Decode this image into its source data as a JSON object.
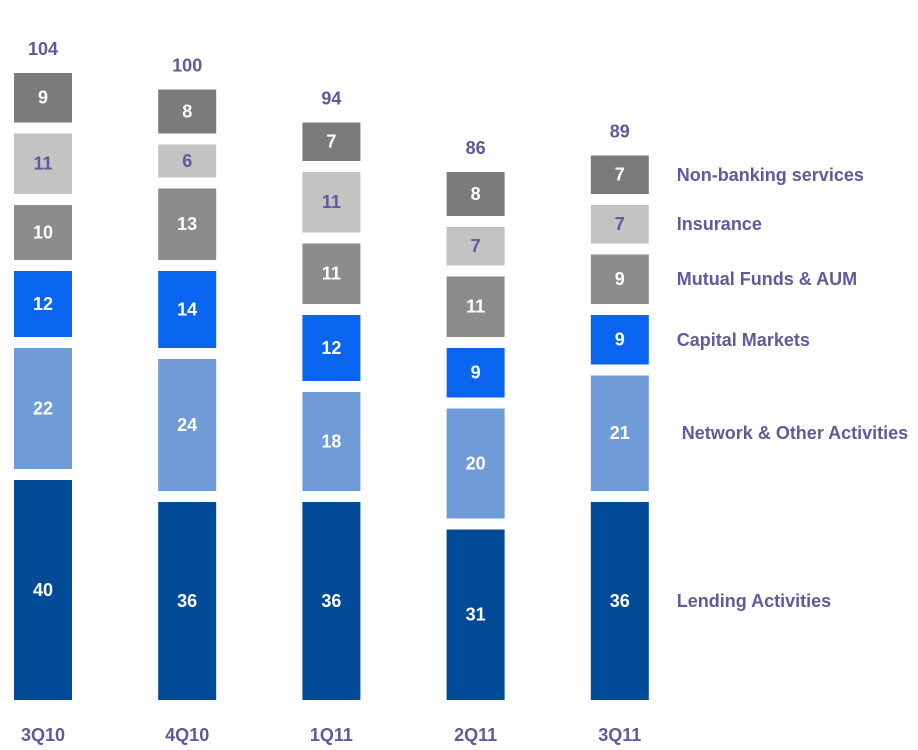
{
  "chart_data": {
    "type": "stacked-bar",
    "categories": [
      "3Q10",
      "4Q10",
      "1Q11",
      "2Q11",
      "3Q11"
    ],
    "totals": [
      104,
      100,
      94,
      86,
      89
    ],
    "series": [
      {
        "name": "Lending Activities",
        "color": "#004a97",
        "values": [
          40,
          36,
          36,
          31,
          36
        ]
      },
      {
        "name": "Network & Other Activities",
        "color": "#6f9bd8",
        "values": [
          22,
          24,
          18,
          20,
          21
        ]
      },
      {
        "name": "Capital Markets",
        "color": "#0964f0",
        "values": [
          12,
          14,
          12,
          9,
          9
        ]
      },
      {
        "name": "Mutual Funds & AUM",
        "color": "#8c8c8c",
        "values": [
          10,
          13,
          11,
          11,
          9
        ]
      },
      {
        "name": "Insurance",
        "color": "#c3c3c3",
        "values": [
          11,
          6,
          11,
          7,
          7
        ]
      },
      {
        "name": "Non-banking services",
        "color": "#7b7b7b",
        "values": [
          9,
          8,
          7,
          8,
          7
        ]
      }
    ]
  }
}
